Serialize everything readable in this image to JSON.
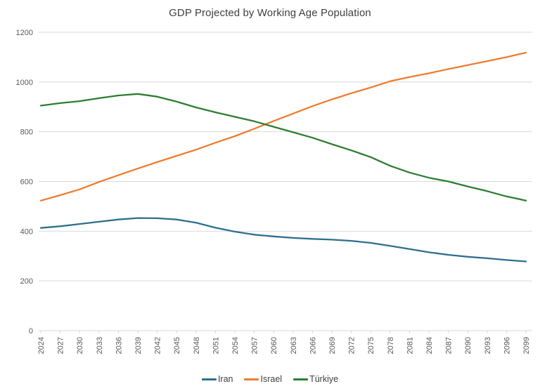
{
  "chart_data": {
    "type": "line",
    "title": "GDP Projected by Working Age Population",
    "x_categories": [
      "2024",
      "2027",
      "2030",
      "2033",
      "2036",
      "2039",
      "2042",
      "2045",
      "2048",
      "2051",
      "2054",
      "2057",
      "2060",
      "2063",
      "2066",
      "2069",
      "2072",
      "2075",
      "2078",
      "2081",
      "2084",
      "2087",
      "2090",
      "2093",
      "2096",
      "2099"
    ],
    "series": [
      {
        "name": "Iran",
        "color": "#2E6F8E",
        "values": [
          413,
          420,
          429,
          438,
          447,
          453,
          452,
          447,
          434,
          414,
          398,
          386,
          379,
          373,
          369,
          366,
          361,
          353,
          341,
          328,
          315,
          305,
          297,
          291,
          284,
          278
        ]
      },
      {
        "name": "Israel",
        "color": "#ED7D31",
        "values": [
          523,
          545,
          568,
          598,
          625,
          652,
          678,
          703,
          728,
          756,
          782,
          812,
          843,
          873,
          903,
          930,
          955,
          978,
          1003,
          1020,
          1035,
          1052,
          1068,
          1084,
          1100,
          1118
        ]
      },
      {
        "name": "Türkiye",
        "color": "#2E7D32",
        "values": [
          905,
          915,
          923,
          935,
          946,
          952,
          941,
          921,
          898,
          878,
          860,
          842,
          820,
          798,
          776,
          750,
          725,
          698,
          663,
          636,
          615,
          600,
          580,
          561,
          540,
          523
        ]
      }
    ],
    "y_ticks": [
      0,
      200,
      400,
      600,
      800,
      1000,
      1200
    ],
    "ylim": [
      0,
      1200
    ],
    "grid": true,
    "legend_position": "bottom",
    "colors": {
      "grid": "#D9D9D9",
      "axis": "#D9D9D9",
      "tick_label": "#595959",
      "title": "#404040",
      "legend_text": "#404040",
      "background": "#FFFFFF"
    }
  }
}
